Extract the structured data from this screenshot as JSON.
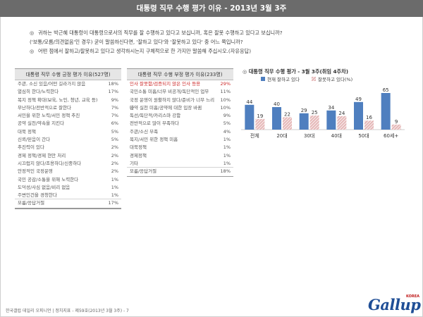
{
  "header": {
    "title": "대통령 직무 수행 평가 이유 - 2013년 3월 3주"
  },
  "questions": [
    {
      "mark": "◎",
      "text": "귀하는 박근혜 대통령이 대통령으로서의 직무를 잘 수행하고 있다고 보십니까, 혹은 잘못 수행하고 있다고 보십니까?"
    },
    {
      "mark": "",
      "text": "('보통/모름/의견없음'인 경우) 굳이 말씀하신다면, '잘하고 있다'와 '잘못하고 있다' 중 어느 쪽입니까?"
    },
    {
      "mark": "◎",
      "text": "어떤 점에서 잘하고/잘못하고 있다고 생각하시는지 구체적으로 한 가지만 말씀해 주십시오.(자유응답)"
    }
  ],
  "positive_table": {
    "title": "대통령 직무 수행 긍정 평가 이유(527명)",
    "rows": [
      {
        "label": "주관, 소신 있음/어떤 길라가지 않음",
        "pct": "18%"
      },
      {
        "label": "열심히 한다/노력한다",
        "pct": "17%"
      },
      {
        "label": "복지 정책 확대(보육, 노인, 청년, 교육 등)",
        "pct": "9%"
      },
      {
        "label": "무난하다/전반적으로 잘한다",
        "pct": "7%"
      },
      {
        "label": "서민을 위한 노력/서민 정책 추진",
        "pct": "7%"
      },
      {
        "label": "공약 실천/약속을 지킨다",
        "pct": "6%"
      },
      {
        "label": "대북 정책",
        "pct": "5%"
      },
      {
        "label": "신뢰/믿음이 간다",
        "pct": "5%"
      },
      {
        "label": "추진력이 있다",
        "pct": "2%"
      },
      {
        "label": "경제 정책/경제 현안 처리",
        "pct": "2%"
      },
      {
        "label": "시끄럽지 않다/조용하다/신중하다",
        "pct": "2%"
      },
      {
        "label": "안정적인 국정운영",
        "pct": "2%"
      },
      {
        "label": "국민 공감/소통을 위해 노력한다",
        "pct": "1%"
      },
      {
        "label": "도덕성/사심 없음/비리 없음",
        "pct": "1%"
      },
      {
        "label": "주변인건을 경청한다",
        "pct": "1%"
      },
      {
        "label": "모름/응답거절",
        "pct": "17%"
      }
    ]
  },
  "negative_table": {
    "title": "대통령 직무 수행 부정 평가 이유(233명)",
    "rows": [
      {
        "label": "인사 잘못함/검증되지 않은 인사 등용",
        "pct": "29%",
        "highlight": true
      },
      {
        "label": "국민소통 미흡/너무 비공개/독단적인 업무",
        "pct": "11%"
      },
      {
        "label": "국정 운영이 원활하지 않다/준비가 너무 느리다",
        "pct": "10%"
      },
      {
        "label": "공약 실천 미흡/공약에 대한 입장 바뀜",
        "pct": "10%"
      },
      {
        "label": "독선/독단적/카리스마 강함",
        "pct": "9%"
      },
      {
        "label": "전반적으로 많이 부족하다",
        "pct": "5%"
      },
      {
        "label": "주관/소신 부족",
        "pct": "4%"
      },
      {
        "label": "복지/서민 위한 정책 미흡",
        "pct": "1%"
      },
      {
        "label": "대북정책",
        "pct": "1%"
      },
      {
        "label": "경제정책",
        "pct": "1%"
      },
      {
        "label": "기타",
        "pct": "1%"
      },
      {
        "label": "모름/응답거절",
        "pct": "18%"
      }
    ]
  },
  "chart_title": "대통령 직무 수행 평가 - 3월 3주(취임 4주차)",
  "chart_data": {
    "type": "bar",
    "title": "대통령 직무 수행 평가 - 3월 3주(취임 4주차)",
    "categories": [
      "전체",
      "20대",
      "30대",
      "40대",
      "50대",
      "60세+"
    ],
    "series": [
      {
        "name": "현재 잘하고 있다",
        "values": [
          44,
          40,
          29,
          34,
          49,
          65
        ],
        "color": "#4f7fbf"
      },
      {
        "name": "잘못하고 있다(%)",
        "values": [
          19,
          22,
          25,
          24,
          16,
          9
        ],
        "color": "#d99494"
      }
    ],
    "ylim": [
      0,
      80
    ],
    "legend_position": "top"
  },
  "footer": {
    "text": "한국갤럽 데일리 오피니언 | 정치지표 - 제59호(2013년 3월 3주) - 7"
  },
  "logo": {
    "text": "Gallup",
    "sub": "KOREA"
  }
}
